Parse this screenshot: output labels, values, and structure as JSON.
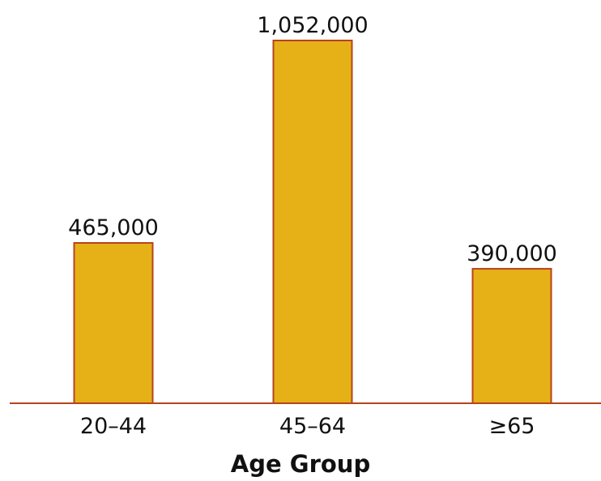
{
  "chart_data": {
    "type": "bar",
    "categories": [
      "20–44",
      "45–64",
      "≥65"
    ],
    "values": [
      465000,
      1052000,
      390000
    ],
    "value_labels": [
      "465,000",
      "1,052,000",
      "390,000"
    ],
    "title": "",
    "xlabel": "Age Group",
    "ylabel": "",
    "ylim": [
      0,
      1052000
    ],
    "grid": false,
    "legend": "none"
  },
  "colors": {
    "bar_fill": "#E6B116",
    "bar_stroke": "#B5441F",
    "axis_line": "#B5441F"
  }
}
